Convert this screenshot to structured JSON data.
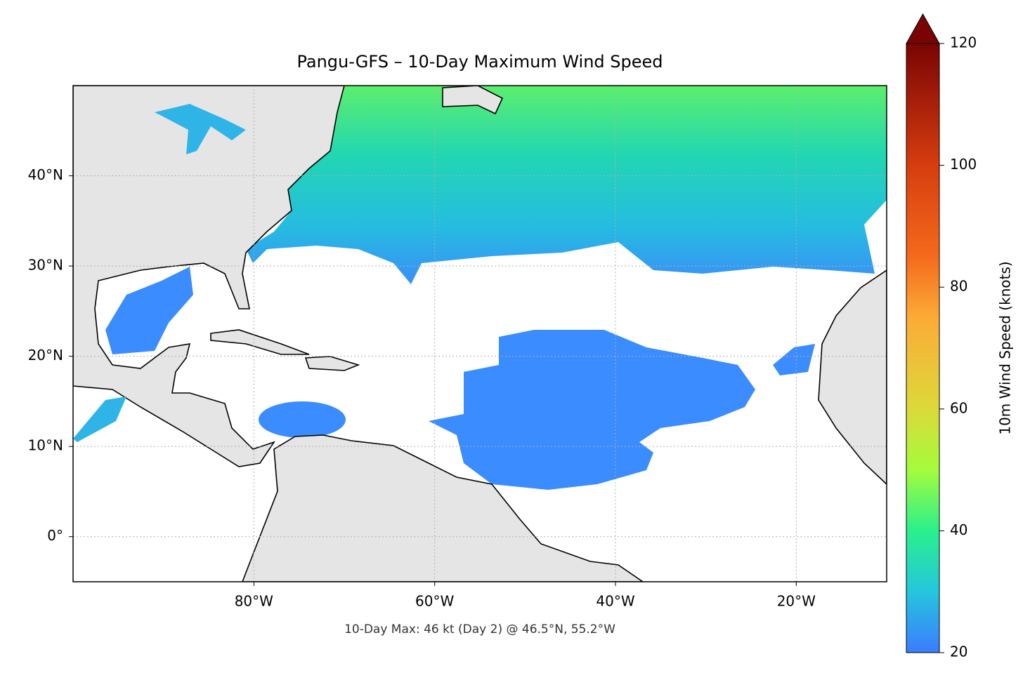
{
  "title": "Pangu-GFS – 10-Day Maximum Wind Speed",
  "annotation": "10-Day Max: 46 kt (Day 2) @ 46.5°N, 55.2°W",
  "map": {
    "xlim": [
      -100,
      -10
    ],
    "ylim": [
      -5,
      50
    ],
    "xticks": [
      {
        "value": -80,
        "label": "80°W"
      },
      {
        "value": -60,
        "label": "60°W"
      },
      {
        "value": -40,
        "label": "40°W"
      },
      {
        "value": -20,
        "label": "20°W"
      }
    ],
    "yticks": [
      {
        "value": 0,
        "label": "0°"
      },
      {
        "value": 10,
        "label": "10°N"
      },
      {
        "value": 20,
        "label": "20°N"
      },
      {
        "value": 30,
        "label": "30°N"
      },
      {
        "value": 40,
        "label": "40°N"
      }
    ]
  },
  "colorbar": {
    "label": "10m Wind Speed (knots)",
    "lim": [
      20,
      120
    ],
    "ticks": [
      20,
      40,
      60,
      80,
      100,
      120
    ]
  }
}
